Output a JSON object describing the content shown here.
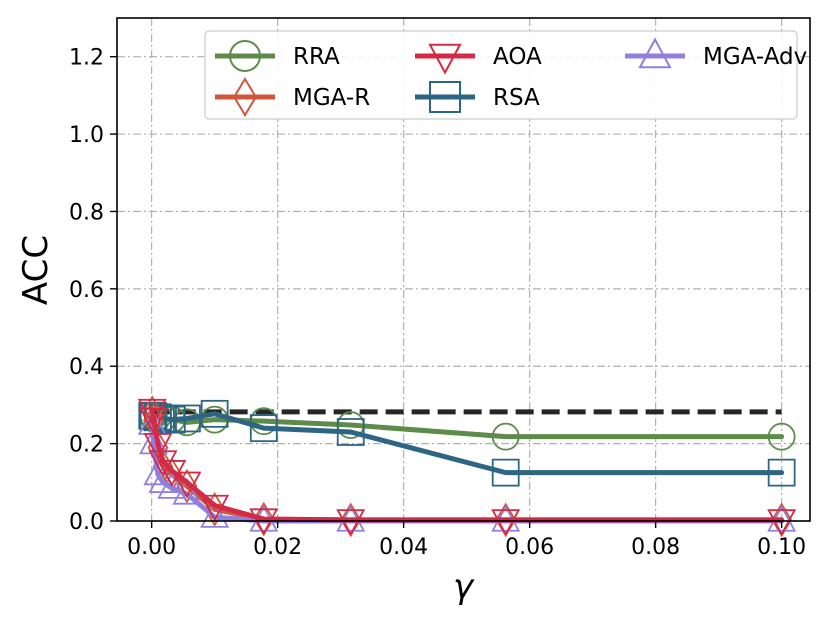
{
  "chart_data": {
    "type": "line",
    "title": "",
    "xlabel": "γ",
    "ylabel": "ACC",
    "xlim": [
      -0.0055,
      0.1045
    ],
    "ylim": [
      0.0,
      1.3
    ],
    "xticks": [
      0.0,
      0.02,
      0.04,
      0.06,
      0.08,
      0.1
    ],
    "xtick_labels": [
      "0.00",
      "0.02",
      "0.04",
      "0.06",
      "0.08",
      "0.10"
    ],
    "yticks": [
      0.0,
      0.2,
      0.4,
      0.6,
      0.8,
      1.0,
      1.2
    ],
    "ytick_labels": [
      "0.0",
      "0.2",
      "0.4",
      "0.6",
      "0.8",
      "1.0",
      "1.2"
    ],
    "grid": true,
    "legend_position": "top-right",
    "reference_line": {
      "y": 0.282,
      "x_range": [
        0.0,
        0.1
      ],
      "color": "#262626",
      "style": "dashed"
    },
    "series": [
      {
        "name": "RRA",
        "color": "#5e8b4a",
        "marker": "circle",
        "x": [
          0.0001,
          0.0003,
          0.001,
          0.0018,
          0.0032,
          0.0056,
          0.01,
          0.0178,
          0.0316,
          0.0562,
          0.1
        ],
        "y": [
          0.272,
          0.272,
          0.27,
          0.266,
          0.262,
          0.255,
          0.262,
          0.258,
          0.248,
          0.218,
          0.218
        ]
      },
      {
        "name": "RSA",
        "color": "#2d6585",
        "marker": "square",
        "x": [
          0.0001,
          0.0003,
          0.001,
          0.0018,
          0.0032,
          0.0056,
          0.01,
          0.0178,
          0.0316,
          0.0562,
          0.1
        ],
        "y": [
          0.272,
          0.27,
          0.268,
          0.265,
          0.262,
          0.265,
          0.277,
          0.24,
          0.23,
          0.125,
          0.125
        ]
      },
      {
        "name": "MGA-R",
        "color": "#d0553a",
        "marker": "diamond",
        "x": [
          0.0001,
          0.0003,
          0.001,
          0.0018,
          0.0032,
          0.0056,
          0.01,
          0.0178,
          0.0316,
          0.0562,
          0.1
        ],
        "y": [
          0.28,
          0.26,
          0.19,
          0.14,
          0.12,
          0.09,
          0.03,
          0.005,
          0.003,
          0.003,
          0.003
        ]
      },
      {
        "name": "MGA-Adv",
        "color": "#8f80e0",
        "marker": "triangle-up",
        "x": [
          0.0001,
          0.0003,
          0.001,
          0.0018,
          0.0032,
          0.0056,
          0.01,
          0.0178,
          0.0316,
          0.0562,
          0.1
        ],
        "y": [
          0.25,
          0.2,
          0.12,
          0.1,
          0.085,
          0.07,
          0.01,
          0.0,
          0.0,
          0.0,
          0.0
        ]
      },
      {
        "name": "AOA",
        "color": "#d42a45",
        "marker": "triangle-down",
        "x": [
          0.0001,
          0.0003,
          0.001,
          0.0018,
          0.0032,
          0.0056,
          0.01,
          0.0178,
          0.0316,
          0.0562,
          0.1
        ],
        "y": [
          0.288,
          0.265,
          0.2,
          0.155,
          0.13,
          0.1,
          0.04,
          0.005,
          0.003,
          0.003,
          0.003
        ]
      }
    ],
    "legend": {
      "entries": [
        "RRA",
        "MGA-R",
        "AOA",
        "RSA",
        "MGA-Adv"
      ],
      "ncol": 3
    }
  }
}
